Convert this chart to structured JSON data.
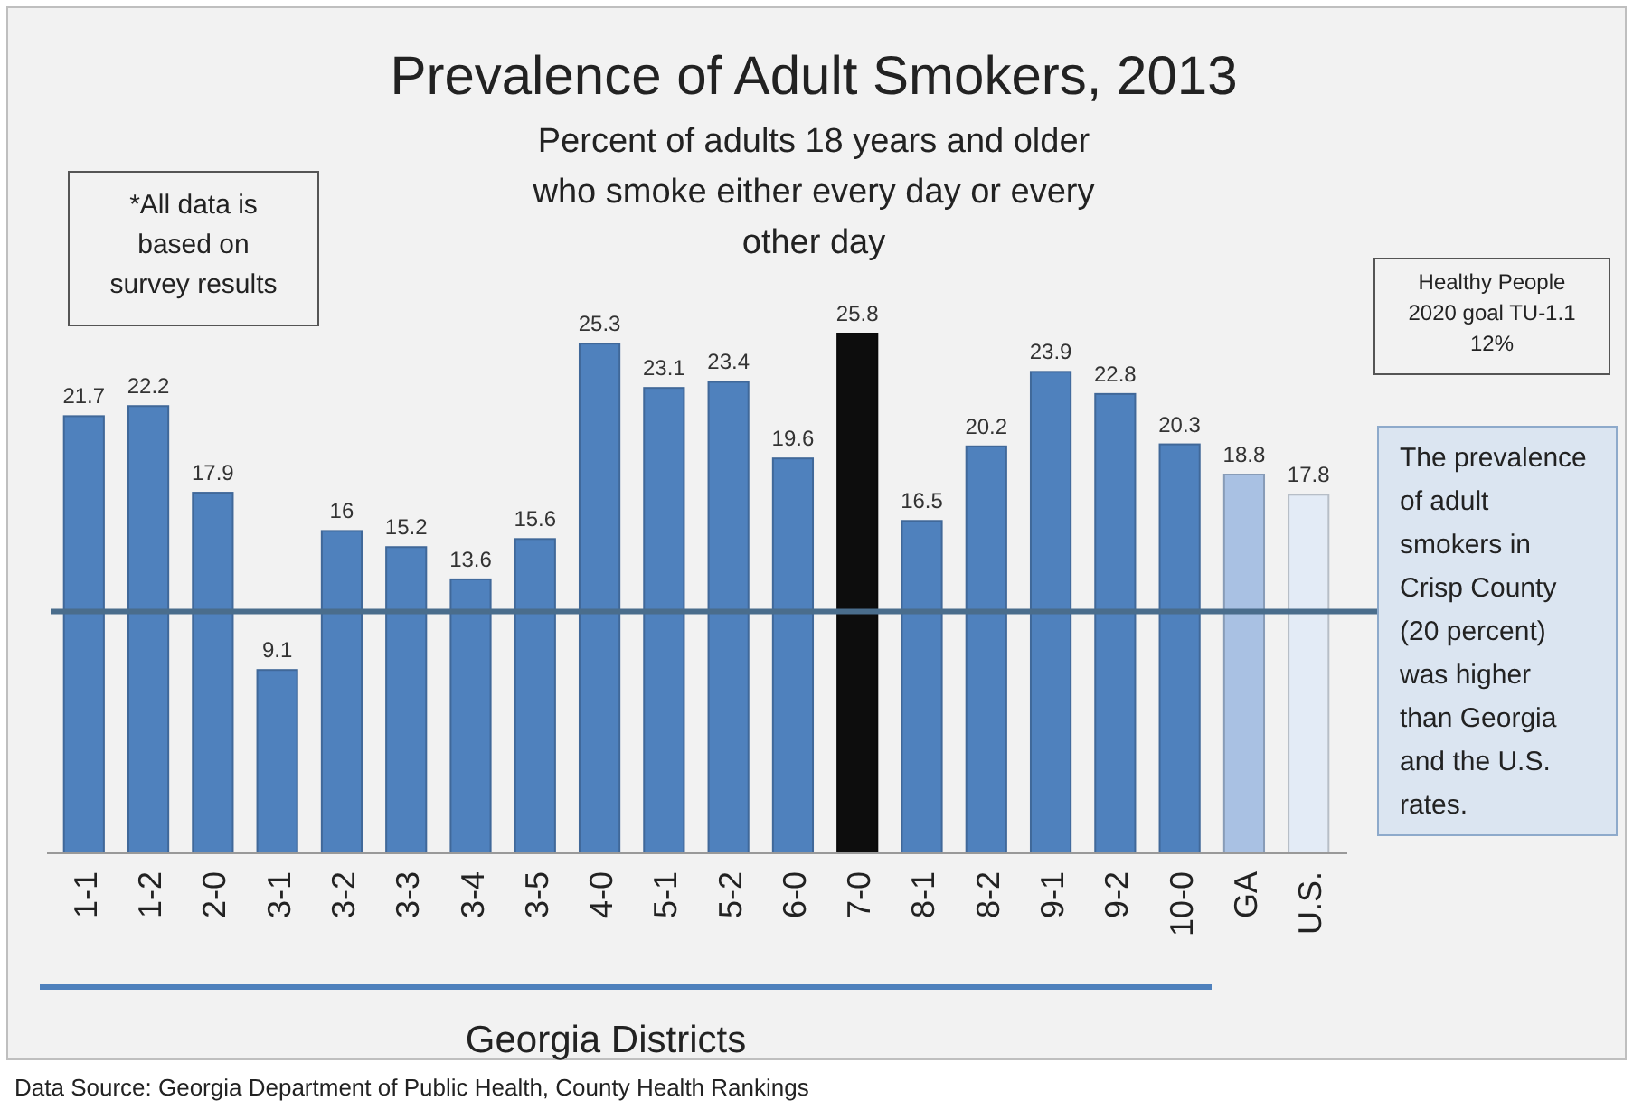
{
  "chart_data": {
    "type": "bar",
    "title": "Prevalence of Adult Smokers, 2013",
    "subtitle": "Percent of adults 18 years and older who smoke either every day or every other day",
    "xlabel": "Georgia Districts",
    "categories": [
      "1-1",
      "1-2",
      "2-0",
      "3-1",
      "3-2",
      "3-3",
      "3-4",
      "3-5",
      "4-0",
      "5-1",
      "5-2",
      "6-0",
      "7-0",
      "8-1",
      "8-2",
      "9-1",
      "9-2",
      "10-0",
      "GA",
      "U.S."
    ],
    "values": [
      21.7,
      22.2,
      17.9,
      9.1,
      16,
      15.2,
      13.6,
      15.6,
      25.3,
      23.1,
      23.4,
      19.6,
      25.8,
      16.5,
      20.2,
      23.9,
      22.8,
      20.3,
      18.8,
      17.8
    ],
    "colors": [
      "#4f81bd",
      "#4f81bd",
      "#4f81bd",
      "#4f81bd",
      "#4f81bd",
      "#4f81bd",
      "#4f81bd",
      "#4f81bd",
      "#4f81bd",
      "#4f81bd",
      "#4f81bd",
      "#4f81bd",
      "#0d0d0d",
      "#4f81bd",
      "#4f81bd",
      "#4f81bd",
      "#4f81bd",
      "#4f81bd",
      "#a9c1e3",
      "#e3ebf6"
    ],
    "data_labels": true,
    "ref_lines": [
      {
        "axis": "y",
        "value": 12,
        "color": "#4a6d8c"
      }
    ],
    "annotations": [
      "*All data is based on survey results",
      "The prevalence of adult smokers in Crisp County (20 percent) was higher than Georgia and the U.S. rates.",
      "Data Source: Georgia Department of Public Health, County Health Rankings",
      "Healthy People 2020 goal TU-1.1 12%"
    ]
  }
}
